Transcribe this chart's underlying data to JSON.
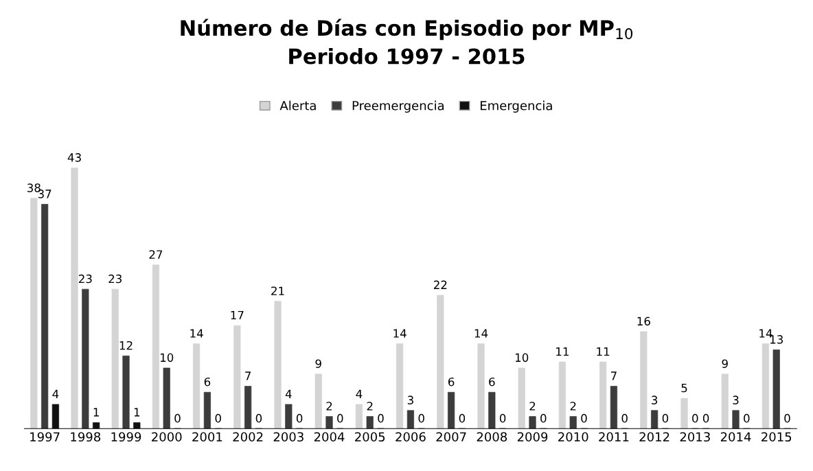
{
  "chart_data": {
    "type": "bar",
    "title": "Número de Días con Episodio por MP$_{10}$\nPeriodo 1997 - 2015",
    "categories": [
      "1997",
      "1998",
      "1999",
      "2000",
      "2001",
      "2002",
      "2003",
      "2004",
      "2005",
      "2006",
      "2007",
      "2008",
      "2009",
      "2010",
      "2011",
      "2012",
      "2013",
      "2014",
      "2015"
    ],
    "series": [
      {
        "name": "Alerta",
        "color": "#d4d4d4",
        "values": [
          38,
          43,
          23,
          27,
          14,
          17,
          21,
          9,
          4,
          14,
          22,
          14,
          10,
          11,
          11,
          16,
          5,
          9,
          14
        ]
      },
      {
        "name": "Preemergencia",
        "color": "#3c3c3c",
        "values": [
          37,
          23,
          12,
          10,
          6,
          7,
          4,
          2,
          2,
          3,
          6,
          6,
          2,
          2,
          7,
          3,
          0,
          3,
          13
        ]
      },
      {
        "name": "Emergencia",
        "color": "#111111",
        "values": [
          4,
          1,
          1,
          0,
          0,
          0,
          0,
          0,
          0,
          0,
          0,
          0,
          0,
          0,
          0,
          0,
          0,
          0,
          0
        ]
      }
    ],
    "data_labels": true,
    "legend": "top",
    "grid": false
  }
}
